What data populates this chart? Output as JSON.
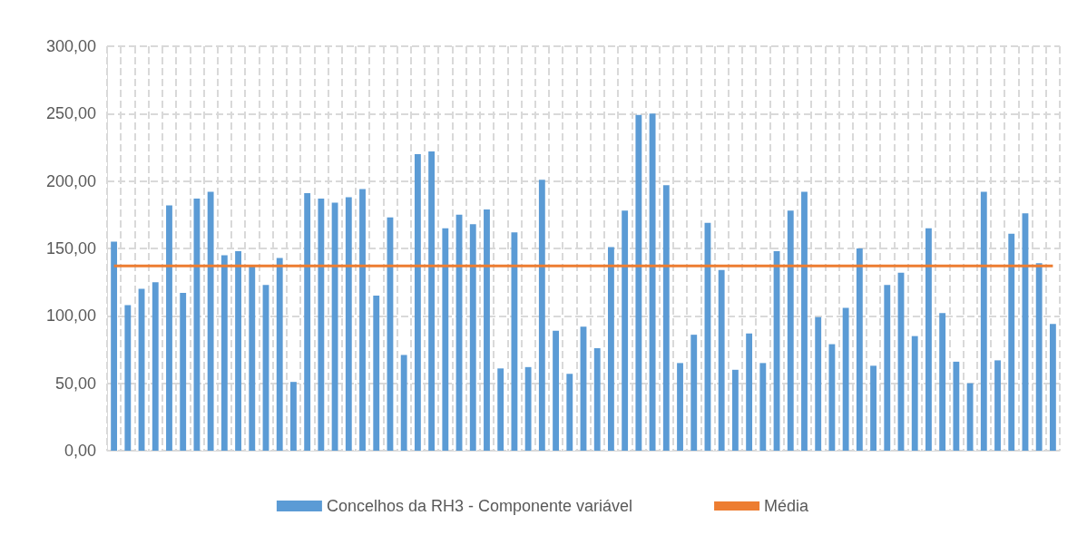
{
  "chart_data": {
    "type": "bar",
    "categories": [
      null,
      null,
      null,
      null,
      null,
      null,
      null,
      null,
      null,
      null,
      null,
      null,
      null,
      null,
      null,
      null,
      null,
      null,
      null,
      null,
      null,
      null,
      null,
      null,
      null,
      null,
      null,
      null,
      null,
      null,
      null,
      null,
      null,
      null,
      null,
      null,
      null,
      null,
      null,
      null,
      null,
      null,
      null,
      null,
      null,
      null,
      null,
      null,
      null,
      null,
      null,
      null,
      null,
      null,
      null,
      null,
      null,
      null,
      null,
      null,
      null,
      null,
      null,
      null,
      null,
      null,
      null,
      null,
      null
    ],
    "series": [
      {
        "name": "Concelhos da RH3 - Componente variável",
        "color": "#5b9bd5",
        "values": [
          155,
          108,
          120,
          125,
          182,
          117,
          187,
          192,
          145,
          148,
          137,
          123,
          143,
          51,
          191,
          187,
          184,
          188,
          194,
          115,
          173,
          71,
          220,
          222,
          165,
          175,
          168,
          179,
          61,
          162,
          62,
          201,
          89,
          57,
          92,
          76,
          151,
          178,
          249,
          250,
          197,
          65,
          86,
          169,
          134,
          60,
          87,
          65,
          148,
          178,
          192,
          99,
          79,
          106,
          150,
          63,
          123,
          132,
          85,
          165,
          102,
          66,
          50,
          192,
          67,
          161,
          176,
          139,
          94
        ]
      },
      {
        "name": "Média",
        "type": "line",
        "color": "#ed7d31",
        "values": [
          137,
          137,
          137,
          137,
          137,
          137,
          137,
          137,
          137,
          137,
          137,
          137,
          137,
          137,
          137,
          137,
          137,
          137,
          137,
          137,
          137,
          137,
          137,
          137,
          137,
          137,
          137,
          137,
          137,
          137,
          137,
          137,
          137,
          137,
          137,
          137,
          137,
          137,
          137,
          137,
          137,
          137,
          137,
          137,
          137,
          137,
          137,
          137,
          137,
          137,
          137,
          137,
          137,
          137,
          137,
          137,
          137,
          137,
          137,
          137,
          137,
          137,
          137,
          137,
          137,
          137,
          137,
          137,
          137
        ]
      }
    ],
    "ylim": [
      0,
      300
    ],
    "yticks": [
      {
        "value": 0,
        "label": "0,00"
      },
      {
        "value": 50,
        "label": "50,00"
      },
      {
        "value": 100,
        "label": "100,00"
      },
      {
        "value": 150,
        "label": "150,00"
      },
      {
        "value": 200,
        "label": "200,00"
      },
      {
        "value": 250,
        "label": "250,00"
      },
      {
        "value": 300,
        "label": "300,00"
      }
    ],
    "grid": true,
    "legend": "bottom",
    "marker": "none",
    "line_style": "solid"
  }
}
